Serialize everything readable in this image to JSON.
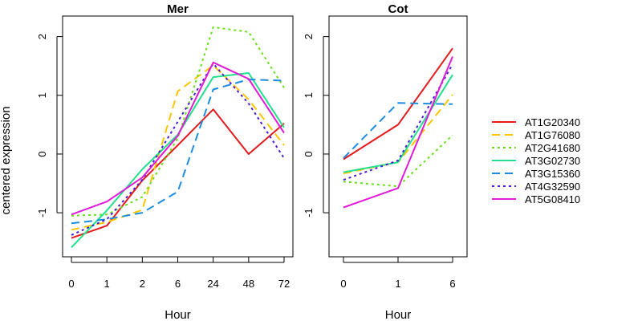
{
  "figure": {
    "ylabel": "centered expression",
    "legend_placement": "right"
  },
  "chart_data": [
    {
      "type": "line",
      "title": "Mer",
      "xlabel": "Hour",
      "ylabel": "centered expression",
      "categories": [
        "0",
        "1",
        "2",
        "6",
        "24",
        "48",
        "72"
      ],
      "ylim": [
        -1.75,
        2.35
      ],
      "yticks": [
        -1,
        0,
        1,
        2
      ],
      "grid": false,
      "series": [
        {
          "name": "AT1G20340",
          "values": [
            -1.43,
            -1.22,
            -0.45,
            0.15,
            0.76,
            0.0,
            0.52
          ]
        },
        {
          "name": "AT1G76080",
          "values": [
            -1.29,
            -1.16,
            -0.95,
            1.07,
            1.51,
            0.93,
            0.15
          ]
        },
        {
          "name": "AT2G41680",
          "values": [
            -1.05,
            -1.03,
            -0.73,
            0.27,
            2.16,
            2.08,
            1.13
          ]
        },
        {
          "name": "AT3G02730",
          "values": [
            -1.59,
            -0.96,
            -0.26,
            0.33,
            1.31,
            1.38,
            0.45
          ]
        },
        {
          "name": "AT3G15360",
          "values": [
            -1.18,
            -1.11,
            -1.0,
            -0.64,
            1.1,
            1.27,
            1.25
          ]
        },
        {
          "name": "AT4G32590",
          "values": [
            -1.38,
            -1.11,
            -0.44,
            0.55,
            1.54,
            0.86,
            -0.07
          ]
        },
        {
          "name": "AT5G08410",
          "values": [
            -1.03,
            -0.81,
            -0.4,
            0.31,
            1.56,
            1.28,
            0.36
          ]
        }
      ]
    },
    {
      "type": "line",
      "title": "Cot",
      "xlabel": "Hour",
      "categories": [
        "0",
        "1",
        "6"
      ],
      "ylim": [
        -1.75,
        2.35
      ],
      "yticks": [
        -1,
        0,
        1,
        2
      ],
      "grid": false,
      "series": [
        {
          "name": "AT1G20340",
          "values": [
            -0.09,
            0.5,
            1.8
          ]
        },
        {
          "name": "AT1G76080",
          "values": [
            -0.33,
            -0.14,
            1.01
          ]
        },
        {
          "name": "AT2G41680",
          "values": [
            -0.47,
            -0.55,
            0.32
          ]
        },
        {
          "name": "AT3G02730",
          "values": [
            -0.31,
            -0.14,
            1.35
          ]
        },
        {
          "name": "AT3G15360",
          "values": [
            -0.07,
            0.87,
            0.85
          ]
        },
        {
          "name": "AT4G32590",
          "values": [
            -0.44,
            -0.11,
            1.53
          ]
        },
        {
          "name": "AT5G08410",
          "values": [
            -0.91,
            -0.58,
            1.66
          ]
        }
      ]
    }
  ],
  "series_styles": [
    {
      "name": "AT1G20340",
      "color": "#e41a1c",
      "dash": "none"
    },
    {
      "name": "AT1G76080",
      "color": "#ffc400",
      "dash": "long-dash"
    },
    {
      "name": "AT2G41680",
      "color": "#66e01a",
      "dash": "dotted"
    },
    {
      "name": "AT3G02730",
      "color": "#1fe08c",
      "dash": "none"
    },
    {
      "name": "AT3G15360",
      "color": "#1a8de0",
      "dash": "long-dash"
    },
    {
      "name": "AT4G32590",
      "color": "#4a1ad6",
      "dash": "dotted"
    },
    {
      "name": "AT5G08410",
      "color": "#e01ad6",
      "dash": "none"
    }
  ]
}
